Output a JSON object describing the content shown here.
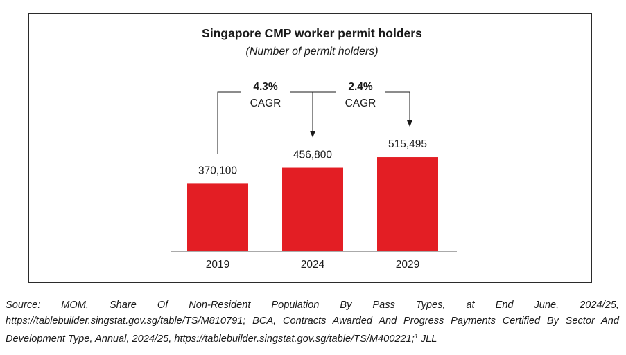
{
  "chart_data": {
    "type": "bar",
    "title": "Singapore CMP worker permit holders",
    "subtitle": "(Number of permit holders)",
    "categories": [
      "2019",
      "2024",
      "2029"
    ],
    "values": [
      370100,
      456800,
      515495
    ],
    "value_labels": [
      "370,100",
      "456,800",
      "515,495"
    ],
    "bar_color": "#e31e24",
    "grid": false,
    "annotations": [
      {
        "from": "2019",
        "to": "2024",
        "value": "4.3%",
        "label": "CAGR"
      },
      {
        "from": "2024",
        "to": "2029",
        "value": "2.4%",
        "label": "CAGR"
      }
    ]
  },
  "source": {
    "lead": "Source: MOM, Share Of Non-Resident Population By Pass Types, at End June, 2024/25, ",
    "link1": "https://tablebuilder.singstat.gov.sg/table/TS/M810791",
    "mid": "; BCA, Contracts Awarded And Progress Payments Certified By Sector And Development Type, Annual, 2024/25, ",
    "link2": "https://tablebuilder.singstat.gov.sg/table/TS/M400221",
    "sep": ";",
    "footnote_marker": "1",
    "tail": " JLL"
  }
}
